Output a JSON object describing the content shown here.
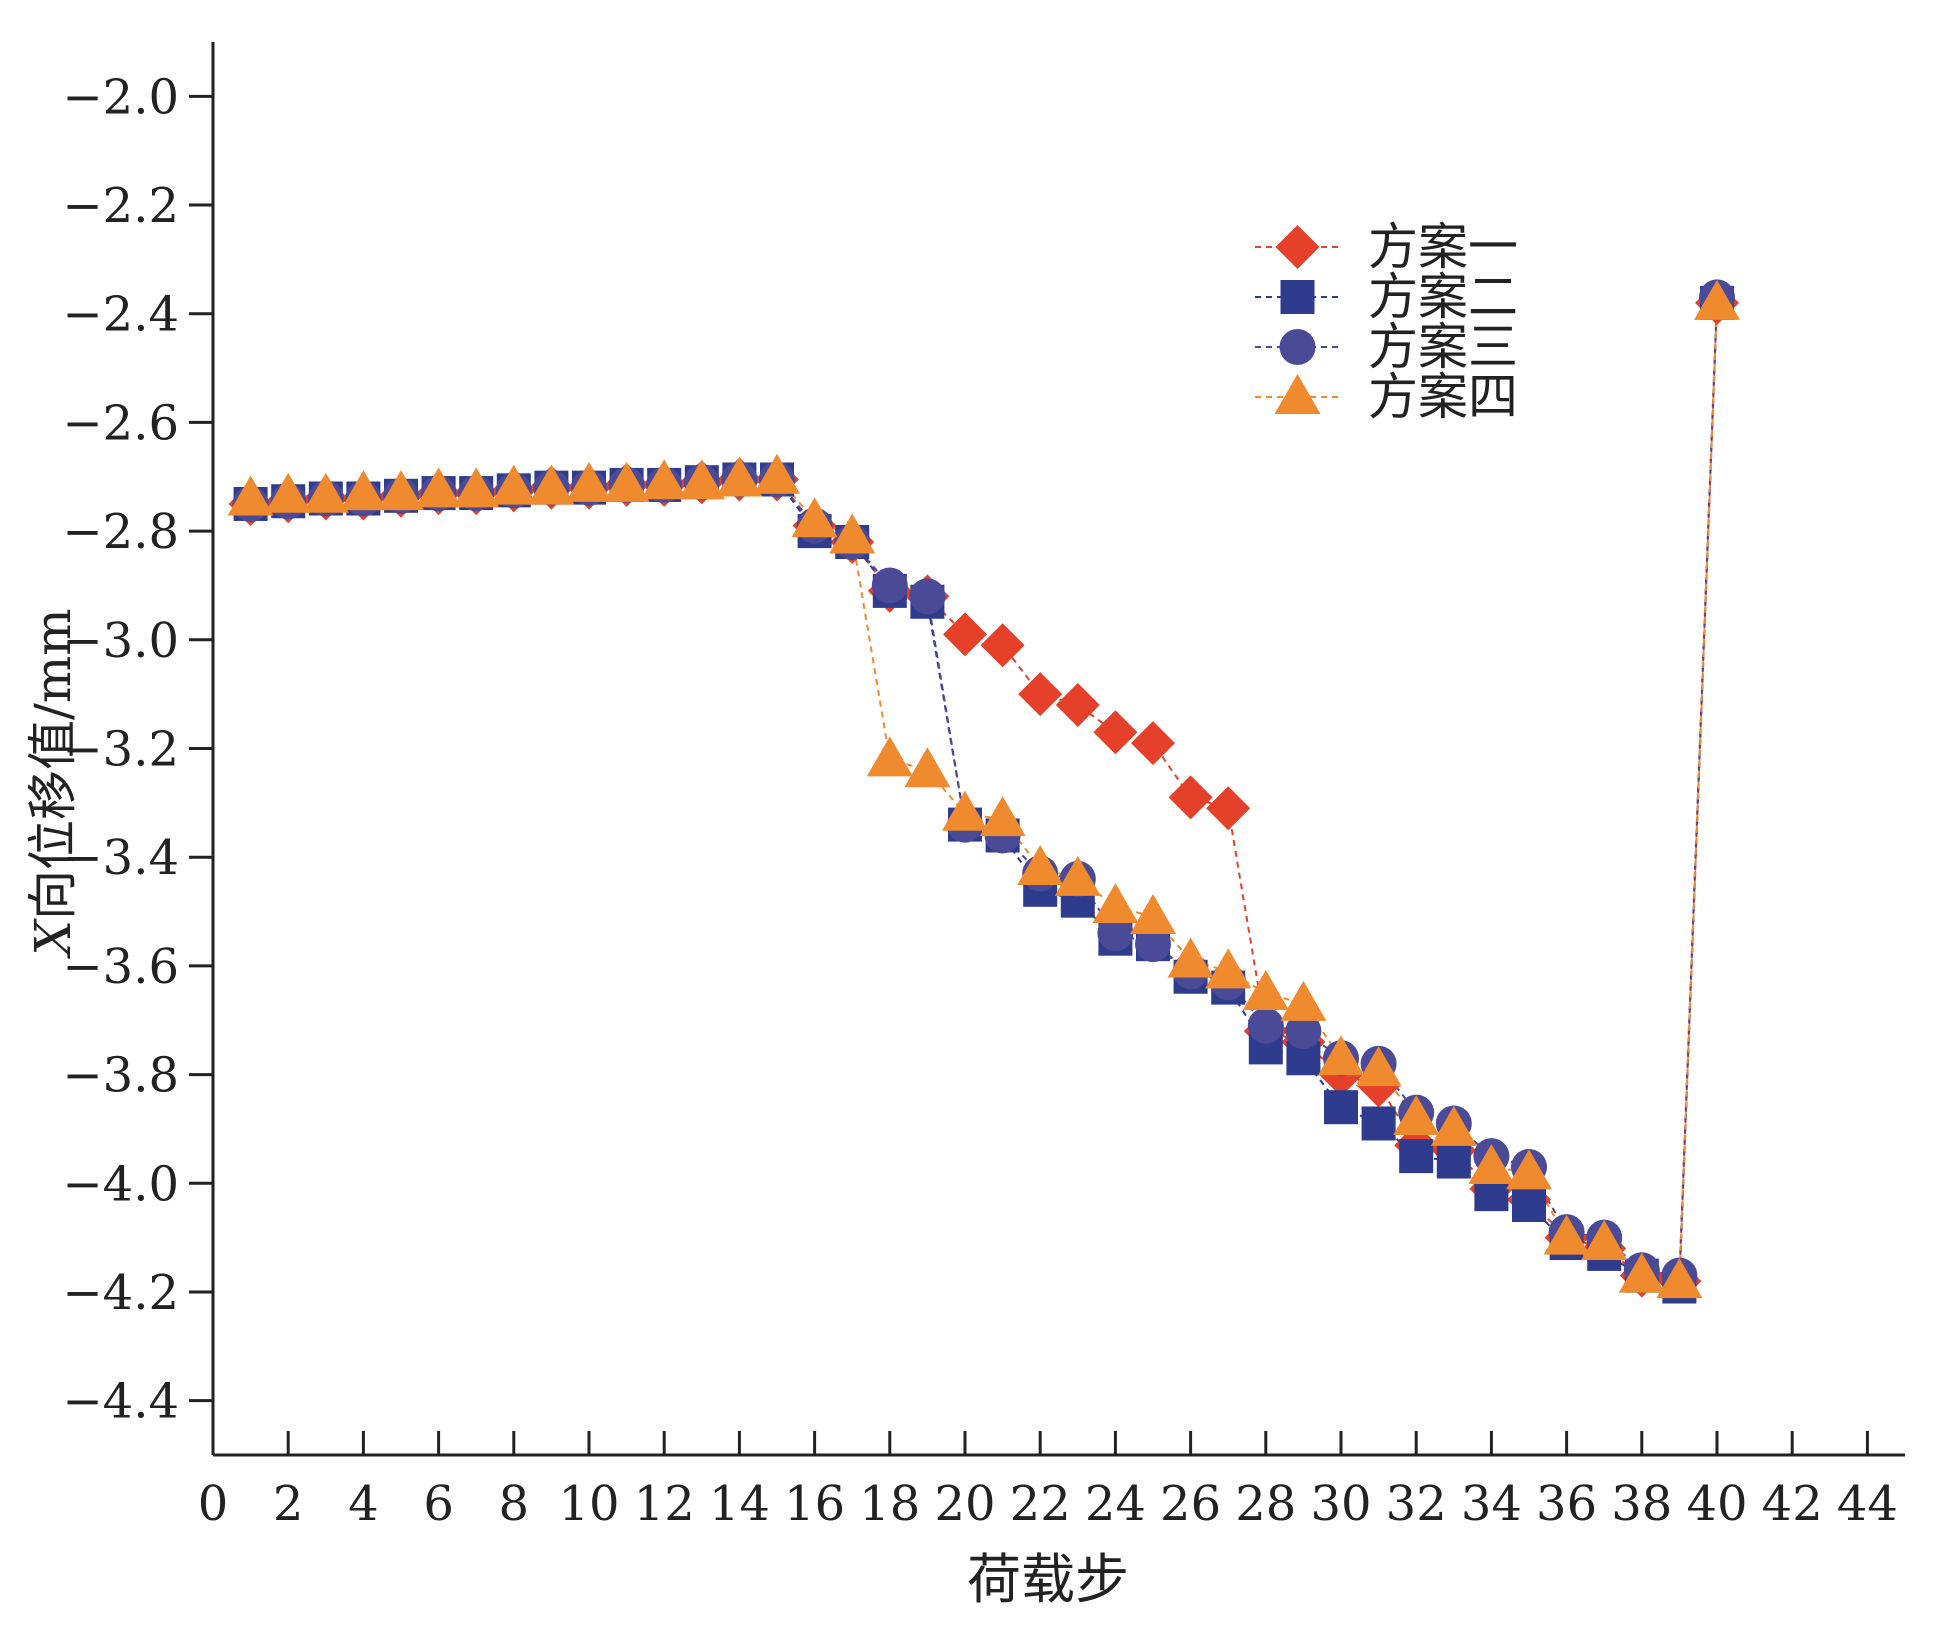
{
  "chart_data": {
    "type": "scatter",
    "title": "",
    "xlabel": "荷载步",
    "ylabel_var": "X",
    "ylabel": "向位移值/mm",
    "xlim": [
      0,
      45
    ],
    "ylim": [
      -4.5,
      -1.9
    ],
    "x_ticks": [
      0,
      2,
      4,
      6,
      8,
      10,
      12,
      14,
      16,
      18,
      20,
      22,
      24,
      26,
      28,
      30,
      32,
      34,
      36,
      38,
      40,
      42,
      44
    ],
    "y_ticks": [
      -2.0,
      -2.2,
      -2.4,
      -2.6,
      -2.8,
      -3.0,
      -3.2,
      -3.4,
      -3.6,
      -3.8,
      -4.0,
      -4.2,
      -4.4
    ],
    "y_tick_labels": [
      "−2.0",
      "−2.2",
      "−2.4",
      "−2.6",
      "−2.8",
      "−3.0",
      "−3.2",
      "−3.4",
      "−3.6",
      "−3.8",
      "−4.0",
      "−4.2",
      "−4.4"
    ],
    "grid": false,
    "legend_position": "top-right",
    "x": [
      1,
      2,
      3,
      4,
      5,
      6,
      7,
      8,
      9,
      10,
      11,
      12,
      13,
      14,
      15,
      16,
      17,
      18,
      19,
      20,
      21,
      22,
      23,
      24,
      25,
      26,
      27,
      28,
      29,
      30,
      31,
      32,
      33,
      34,
      35,
      36,
      37,
      38,
      39,
      40
    ],
    "series": [
      {
        "name": "方案一",
        "marker": "diamond",
        "color": "#e5412a",
        "values": [
          -2.75,
          -2.745,
          -2.74,
          -2.74,
          -2.735,
          -2.73,
          -2.73,
          -2.725,
          -2.72,
          -2.72,
          -2.715,
          -2.715,
          -2.71,
          -2.705,
          -2.705,
          -2.79,
          -2.82,
          -2.91,
          -2.92,
          -2.99,
          -3.01,
          -3.1,
          -3.12,
          -3.17,
          -3.19,
          -3.29,
          -3.31,
          -3.72,
          -3.74,
          -3.8,
          -3.82,
          -3.93,
          -3.94,
          -4.01,
          -4.03,
          -4.1,
          -4.12,
          -4.17,
          -4.18,
          -2.38
        ]
      },
      {
        "name": "方案二",
        "marker": "square",
        "color": "#2f3b8c",
        "values": [
          -2.75,
          -2.745,
          -2.74,
          -2.74,
          -2.735,
          -2.73,
          -2.73,
          -2.725,
          -2.72,
          -2.72,
          -2.715,
          -2.715,
          -2.71,
          -2.705,
          -2.705,
          -2.8,
          -2.82,
          -2.91,
          -2.93,
          -3.34,
          -3.36,
          -3.46,
          -3.48,
          -3.55,
          -3.56,
          -3.62,
          -3.64,
          -3.75,
          -3.77,
          -3.86,
          -3.89,
          -3.95,
          -3.96,
          -4.02,
          -4.04,
          -4.11,
          -4.13,
          -4.17,
          -4.19,
          -2.38
        ]
      },
      {
        "name": "方案三",
        "marker": "circle",
        "color": "#4a4a96",
        "values": [
          -2.75,
          -2.745,
          -2.74,
          -2.74,
          -2.735,
          -2.73,
          -2.73,
          -2.725,
          -2.72,
          -2.72,
          -2.715,
          -2.715,
          -2.71,
          -2.705,
          -2.705,
          -2.79,
          -2.82,
          -2.9,
          -2.92,
          -3.34,
          -3.36,
          -3.43,
          -3.44,
          -3.54,
          -3.56,
          -3.61,
          -3.63,
          -3.71,
          -3.72,
          -3.77,
          -3.78,
          -3.87,
          -3.89,
          -3.95,
          -3.97,
          -4.09,
          -4.1,
          -4.16,
          -4.17,
          -2.37
        ]
      },
      {
        "name": "方案四",
        "marker": "triangle",
        "color": "#ef8a2e",
        "values": [
          -2.74,
          -2.735,
          -2.735,
          -2.73,
          -2.73,
          -2.725,
          -2.725,
          -2.72,
          -2.72,
          -2.715,
          -2.715,
          -2.71,
          -2.71,
          -2.705,
          -2.7,
          -2.78,
          -2.81,
          -3.22,
          -3.24,
          -3.32,
          -3.33,
          -3.42,
          -3.44,
          -3.49,
          -3.51,
          -3.59,
          -3.61,
          -3.65,
          -3.67,
          -3.77,
          -3.79,
          -3.88,
          -3.9,
          -3.97,
          -3.98,
          -4.1,
          -4.11,
          -4.17,
          -4.18,
          -2.38
        ]
      }
    ]
  }
}
